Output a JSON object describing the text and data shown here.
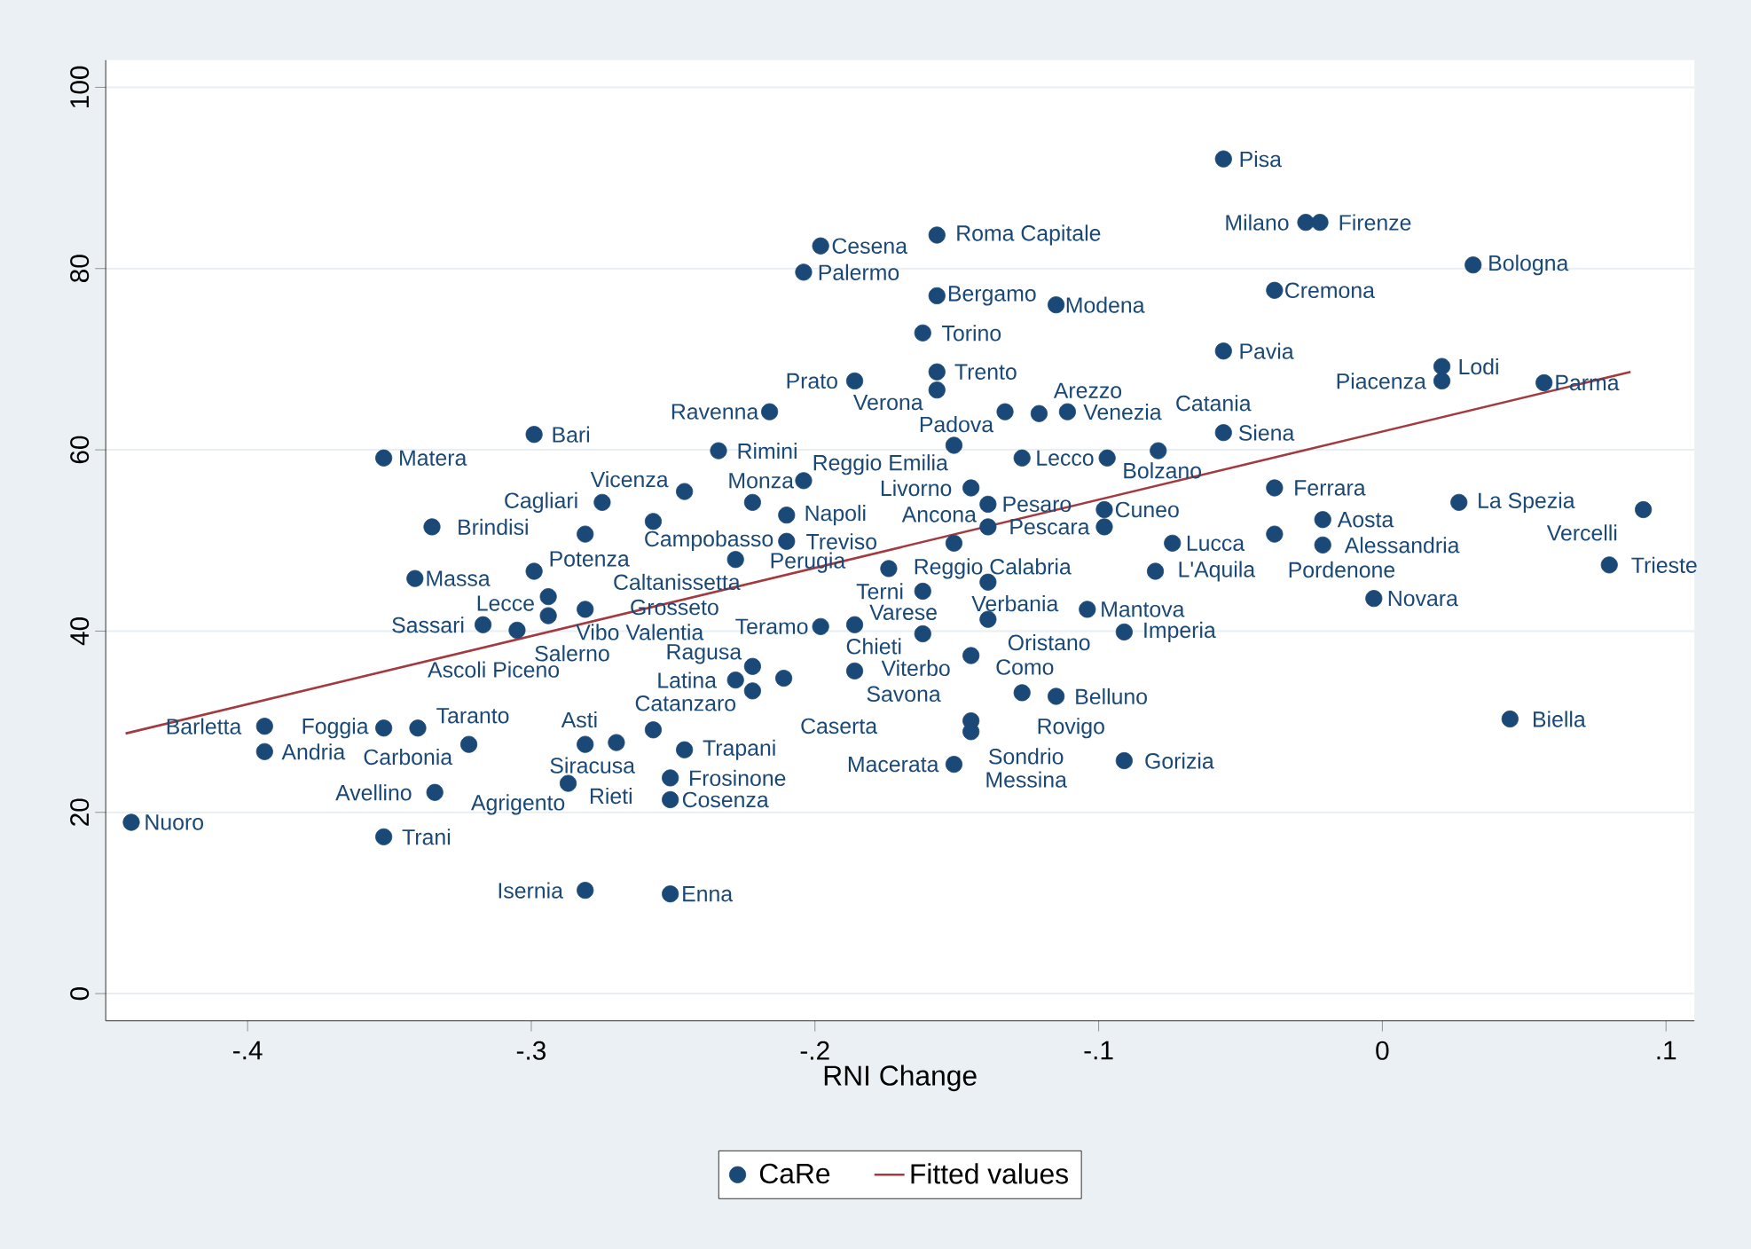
{
  "chart_data": {
    "type": "scatter",
    "xlabel": "RNI Change",
    "xlim": [
      -0.45,
      0.11
    ],
    "ylim": [
      -3,
      103
    ],
    "xticks": [
      {
        "value": -0.4,
        "label": "-.4"
      },
      {
        "value": -0.3,
        "label": "-.3"
      },
      {
        "value": -0.2,
        "label": "-.2"
      },
      {
        "value": -0.1,
        "label": "-.1"
      },
      0,
      {
        "value": 0.1,
        "label": ".1"
      }
    ],
    "yticks": [
      0,
      20,
      40,
      60,
      80,
      100
    ],
    "grid": "y",
    "legend": "bottom",
    "series": [
      {
        "name": "CaRe",
        "color": "#1a4877",
        "marker": "circle",
        "x": [
          -0.056,
          -0.157,
          -0.198,
          -0.204,
          -0.027,
          -0.022,
          0.032,
          -0.038,
          -0.157,
          -0.115,
          -0.162,
          -0.056,
          0.021,
          0.021,
          0.057,
          -0.186,
          -0.157,
          -0.157,
          -0.216,
          -0.133,
          -0.121,
          -0.111,
          -0.056,
          -0.299,
          -0.352,
          -0.234,
          -0.151,
          -0.127,
          -0.097,
          -0.079,
          -0.204,
          -0.145,
          -0.038,
          0.027,
          0.092,
          -0.275,
          -0.246,
          -0.222,
          -0.21,
          -0.335,
          -0.281,
          -0.257,
          -0.21,
          -0.341,
          -0.299,
          -0.228,
          -0.174,
          -0.08,
          0.08,
          -0.098,
          -0.098,
          -0.074,
          -0.038,
          -0.021,
          -0.021,
          -0.151,
          -0.139,
          -0.139,
          -0.003,
          -0.104,
          -0.162,
          -0.139,
          -0.139,
          -0.091,
          -0.162,
          -0.186,
          -0.198,
          -0.145,
          -0.294,
          -0.305,
          -0.317,
          -0.281,
          -0.294,
          -0.222,
          -0.186,
          -0.222,
          -0.228,
          -0.211,
          -0.115,
          -0.127,
          -0.145,
          -0.145,
          -0.151,
          -0.091,
          0.045,
          -0.394,
          -0.394,
          -0.352,
          -0.34,
          -0.322,
          -0.281,
          -0.27,
          -0.246,
          -0.257,
          -0.334,
          -0.287,
          -0.251,
          -0.251,
          -0.441,
          -0.352,
          -0.281,
          -0.251
        ],
        "values": [
          92.1,
          83.7,
          82.5,
          79.6,
          85.1,
          85.1,
          80.4,
          77.6,
          77.0,
          76.0,
          72.9,
          70.9,
          69.2,
          67.6,
          67.4,
          67.6,
          68.6,
          66.6,
          64.2,
          64.2,
          64.0,
          64.2,
          61.9,
          61.7,
          59.1,
          59.9,
          60.5,
          59.1,
          59.1,
          59.9,
          56.6,
          55.8,
          55.8,
          54.2,
          53.4,
          54.2,
          55.4,
          54.2,
          52.8,
          51.5,
          50.7,
          52.1,
          49.9,
          45.8,
          46.6,
          47.9,
          46.9,
          46.6,
          47.3,
          53.4,
          51.5,
          49.7,
          50.7,
          52.3,
          49.5,
          49.7,
          54.0,
          51.5,
          43.6,
          42.4,
          44.4,
          45.4,
          41.3,
          39.9,
          39.7,
          40.7,
          40.5,
          37.3,
          43.8,
          40.1,
          40.7,
          42.4,
          41.7,
          36.1,
          35.6,
          33.4,
          34.6,
          34.8,
          32.8,
          33.2,
          30.1,
          28.9,
          25.3,
          25.7,
          30.3,
          29.5,
          26.7,
          29.3,
          29.3,
          27.5,
          27.5,
          27.7,
          26.9,
          29.1,
          22.2,
          23.2,
          23.8,
          21.4,
          18.9,
          17.3,
          11.4,
          11.0
        ]
      },
      {
        "name": "Fitted values",
        "type": "line",
        "color": "#a33a3f",
        "line_style": "solid",
        "x": [
          -0.443,
          0.0875
        ],
        "values": [
          28.7,
          68.6
        ]
      }
    ],
    "annotations": [
      {
        "text": "Pisa",
        "x": -0.056,
        "y": 92.1
      },
      {
        "text": "Roma Capitale",
        "x": -0.157,
        "y": 83.7
      },
      {
        "text": "Cesena",
        "x": -0.198,
        "y": 82.5
      },
      {
        "text": "Palermo",
        "x": -0.204,
        "y": 79.6
      },
      {
        "text": "Milano",
        "x": -0.027,
        "y": 85.1
      },
      {
        "text": "Firenze",
        "x": -0.022,
        "y": 85.1
      },
      {
        "text": "Bologna",
        "x": 0.032,
        "y": 80.4
      },
      {
        "text": "Cremona",
        "x": -0.038,
        "y": 77.6
      },
      {
        "text": "Bergamo",
        "x": -0.157,
        "y": 77.0
      },
      {
        "text": "Modena",
        "x": -0.115,
        "y": 76.0
      },
      {
        "text": "Torino",
        "x": -0.162,
        "y": 72.9
      },
      {
        "text": "Pavia",
        "x": -0.056,
        "y": 70.9
      },
      {
        "text": "Lodi",
        "x": 0.021,
        "y": 69.2
      },
      {
        "text": "Piacenza",
        "x": 0.021,
        "y": 67.6
      },
      {
        "text": "Parma",
        "x": 0.057,
        "y": 67.4
      },
      {
        "text": "Prato",
        "x": -0.186,
        "y": 67.6
      },
      {
        "text": "Trento",
        "x": -0.157,
        "y": 68.6
      },
      {
        "text": "Verona",
        "x": -0.157,
        "y": 66.6
      },
      {
        "text": "Ravenna",
        "x": -0.216,
        "y": 64.2
      },
      {
        "text": "Padova",
        "x": -0.133,
        "y": 64.2
      },
      {
        "text": "Arezzo",
        "x": -0.121,
        "y": 64.0
      },
      {
        "text": "Venezia",
        "x": -0.111,
        "y": 64.2
      },
      {
        "text": "Siena",
        "x": -0.056,
        "y": 61.9
      },
      {
        "text": "Bari",
        "x": -0.299,
        "y": 61.7
      },
      {
        "text": "Matera",
        "x": -0.352,
        "y": 59.1
      },
      {
        "text": "Rimini",
        "x": -0.234,
        "y": 59.9
      },
      {
        "text": "Reggio Emilia",
        "x": -0.151,
        "y": 60.5
      },
      {
        "text": "Lecco",
        "x": -0.127,
        "y": 59.1
      },
      {
        "text": "Bolzano",
        "x": -0.097,
        "y": 59.1
      },
      {
        "text": "Catania",
        "x": -0.079,
        "y": 59.9
      },
      {
        "text": "Monza",
        "x": -0.204,
        "y": 56.6
      },
      {
        "text": "Livorno",
        "x": -0.145,
        "y": 55.8
      },
      {
        "text": "Ferrara",
        "x": -0.038,
        "y": 55.8
      },
      {
        "text": "La Spezia",
        "x": 0.027,
        "y": 54.2
      },
      {
        "text": "Vercelli",
        "x": 0.092,
        "y": 53.4
      },
      {
        "text": "Cagliari",
        "x": -0.275,
        "y": 54.2
      },
      {
        "text": "Vicenza",
        "x": -0.246,
        "y": 55.4
      },
      {
        "text": "Perugia",
        "x": -0.222,
        "y": 54.2
      },
      {
        "text": "Napoli",
        "x": -0.21,
        "y": 52.8
      },
      {
        "text": "Brindisi",
        "x": -0.335,
        "y": 51.5
      },
      {
        "text": "Caltanissetta",
        "x": -0.281,
        "y": 50.7
      },
      {
        "text": "Campobasso",
        "x": -0.257,
        "y": 52.1
      },
      {
        "text": "Treviso",
        "x": -0.21,
        "y": 49.9
      },
      {
        "text": "Massa",
        "x": -0.341,
        "y": 45.8
      },
      {
        "text": "Potenza",
        "x": -0.299,
        "y": 46.6
      },
      {
        "text": "Grosseto",
        "x": -0.228,
        "y": 47.9
      },
      {
        "text": "Reggio Calabria",
        "x": -0.174,
        "y": 46.9
      },
      {
        "text": "L'Aquila",
        "x": -0.08,
        "y": 46.6
      },
      {
        "text": "Trieste",
        "x": 0.08,
        "y": 47.3
      },
      {
        "text": "Cuneo",
        "x": -0.098,
        "y": 53.4
      },
      {
        "text": "Pescara",
        "x": -0.098,
        "y": 51.5
      },
      {
        "text": "Lucca",
        "x": -0.074,
        "y": 49.7
      },
      {
        "text": "Pordenone",
        "x": -0.038,
        "y": 50.7
      },
      {
        "text": "Aosta",
        "x": -0.021,
        "y": 52.3
      },
      {
        "text": "Alessandria",
        "x": -0.021,
        "y": 49.5
      },
      {
        "text": "Verbania",
        "x": -0.151,
        "y": 49.7
      },
      {
        "text": "Pesaro",
        "x": -0.139,
        "y": 54.0
      },
      {
        "text": "Ancona",
        "x": -0.139,
        "y": 51.5
      },
      {
        "text": "Novara",
        "x": -0.003,
        "y": 43.6
      },
      {
        "text": "Mantova",
        "x": -0.104,
        "y": 42.4
      },
      {
        "text": "Terni",
        "x": -0.162,
        "y": 44.4
      },
      {
        "text": "Oristano",
        "x": -0.139,
        "y": 45.4
      },
      {
        "text": "Como",
        "x": -0.139,
        "y": 41.3
      },
      {
        "text": "Imperia",
        "x": -0.091,
        "y": 39.9
      },
      {
        "text": "Chieti",
        "x": -0.162,
        "y": 39.7
      },
      {
        "text": "Varese",
        "x": -0.186,
        "y": 40.7
      },
      {
        "text": "Teramo",
        "x": -0.198,
        "y": 40.5
      },
      {
        "text": "Viterbo",
        "x": -0.145,
        "y": 37.3
      },
      {
        "text": "Vibo Valentia",
        "x": -0.294,
        "y": 43.8
      },
      {
        "text": "Salerno",
        "x": -0.305,
        "y": 40.1
      },
      {
        "text": "Sassari",
        "x": -0.317,
        "y": 40.7
      },
      {
        "text": "Ascoli Piceno",
        "x": -0.281,
        "y": 42.4
      },
      {
        "text": "Lecce",
        "x": -0.294,
        "y": 41.7
      },
      {
        "text": "Ragusa",
        "x": -0.222,
        "y": 36.1
      },
      {
        "text": "Savona",
        "x": -0.186,
        "y": 35.6
      },
      {
        "text": "Catanzaro",
        "x": -0.222,
        "y": 33.4
      },
      {
        "text": "Latina",
        "x": -0.228,
        "y": 34.6
      },
      {
        "text": "Caserta",
        "x": -0.211,
        "y": 34.8
      },
      {
        "text": "Belluno",
        "x": -0.115,
        "y": 32.8
      },
      {
        "text": "Rovigo",
        "x": -0.127,
        "y": 33.2
      },
      {
        "text": "Sondrio",
        "x": -0.145,
        "y": 30.1
      },
      {
        "text": "Messina",
        "x": -0.145,
        "y": 28.9
      },
      {
        "text": "Macerata",
        "x": -0.151,
        "y": 25.3
      },
      {
        "text": "Gorizia",
        "x": -0.091,
        "y": 25.7
      },
      {
        "text": "Biella",
        "x": 0.045,
        "y": 30.3
      },
      {
        "text": "Barletta",
        "x": -0.394,
        "y": 29.5
      },
      {
        "text": "Andria",
        "x": -0.394,
        "y": 26.7
      },
      {
        "text": "Foggia",
        "x": -0.352,
        "y": 29.3
      },
      {
        "text": "Taranto",
        "x": -0.34,
        "y": 29.3
      },
      {
        "text": "Carbonia",
        "x": -0.322,
        "y": 27.5
      },
      {
        "text": "Agrigento",
        "x": -0.281,
        "y": 27.5
      },
      {
        "text": "Asti",
        "x": -0.27,
        "y": 27.7
      },
      {
        "text": "Trapani",
        "x": -0.246,
        "y": 26.9
      },
      {
        "text": "Siracusa",
        "x": -0.257,
        "y": 29.1
      },
      {
        "text": "Avellino",
        "x": -0.334,
        "y": 22.2
      },
      {
        "text": "Rieti",
        "x": -0.287,
        "y": 23.2
      },
      {
        "text": "Frosinone",
        "x": -0.251,
        "y": 23.8
      },
      {
        "text": "Cosenza",
        "x": -0.251,
        "y": 21.4
      },
      {
        "text": "Nuoro",
        "x": -0.441,
        "y": 18.9
      },
      {
        "text": "Trani",
        "x": -0.352,
        "y": 17.3
      },
      {
        "text": "Isernia",
        "x": -0.281,
        "y": 11.4
      },
      {
        "text": "Enna",
        "x": -0.251,
        "y": 11.0
      }
    ]
  }
}
